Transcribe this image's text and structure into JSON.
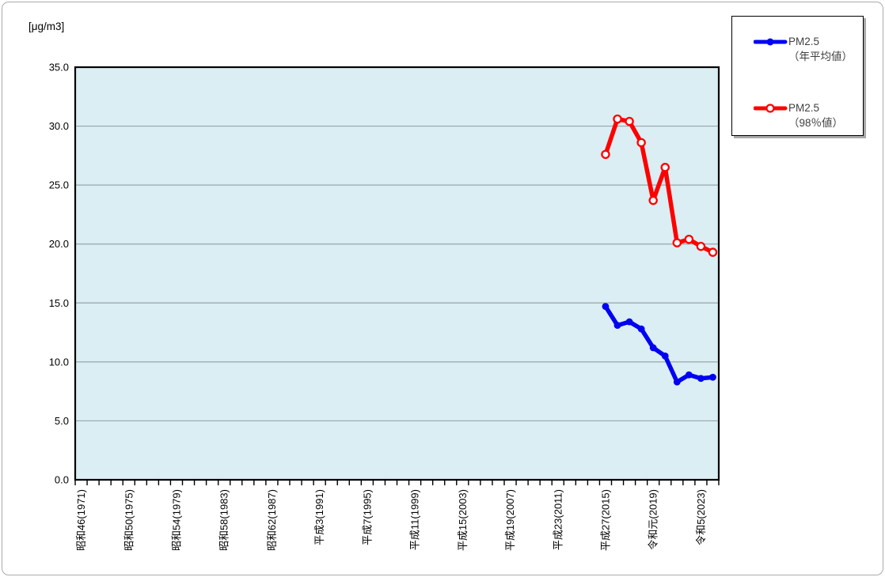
{
  "chart": {
    "unit_label": "[μg/m3]"
  },
  "legend": {
    "entries": [
      {
        "label_line1": "PM2.5",
        "label_line2": "（年平均値）",
        "color": "#0000f2",
        "marker": "filled-circle"
      },
      {
        "label_line1": "PM2.5",
        "label_line2": "（98％値）",
        "color": "#fe0000",
        "marker": "open-circle"
      }
    ]
  },
  "chart_data": {
    "type": "line",
    "title": "",
    "ylabel": "[μg/m3]",
    "ylim": [
      0,
      35
    ],
    "y_tick_step": 5,
    "y_tick_labels": [
      "0.0",
      "5.0",
      "10.0",
      "15.0",
      "20.0",
      "25.0",
      "30.0",
      "35.0"
    ],
    "grid": true,
    "legend_position": "outside-top-right",
    "plot_bg_color": "#daeef3",
    "gridline_color": "#9aa5ab",
    "axis_color": "#000000",
    "x_axis": {
      "category_start_year": 1971,
      "category_end_year": 2024,
      "tick_labels": [
        {
          "year": 1971,
          "label": "昭和46(1971)"
        },
        {
          "year": 1975,
          "label": "昭和50(1975)"
        },
        {
          "year": 1979,
          "label": "昭和54(1979)"
        },
        {
          "year": 1983,
          "label": "昭和58(1983)"
        },
        {
          "year": 1987,
          "label": "昭和62(1987)"
        },
        {
          "year": 1991,
          "label": "平成3(1991)"
        },
        {
          "year": 1995,
          "label": "平成7(1995)"
        },
        {
          "year": 1999,
          "label": "平成11(1999)"
        },
        {
          "year": 2003,
          "label": "平成15(2003)"
        },
        {
          "year": 2007,
          "label": "平成19(2007)"
        },
        {
          "year": 2011,
          "label": "平成23(2011)"
        },
        {
          "year": 2015,
          "label": "平成27(2015)"
        },
        {
          "year": 2019,
          "label": "令和元(2019)"
        },
        {
          "year": 2023,
          "label": "令和5(2023)"
        }
      ]
    },
    "x": [
      2015,
      2016,
      2017,
      2018,
      2019,
      2020,
      2021,
      2022,
      2023,
      2024
    ],
    "series": [
      {
        "name": "PM2.5（年平均値）",
        "color": "#0000f2",
        "marker": "filled-circle",
        "values": [
          14.7,
          13.1,
          13.4,
          12.8,
          11.2,
          10.5,
          8.3,
          8.9,
          8.6,
          8.7
        ]
      },
      {
        "name": "PM2.5（98％値）",
        "color": "#fe0000",
        "marker": "open-circle",
        "values": [
          27.6,
          30.6,
          30.4,
          28.6,
          23.7,
          26.5,
          20.1,
          20.4,
          19.8,
          19.3
        ]
      }
    ]
  }
}
